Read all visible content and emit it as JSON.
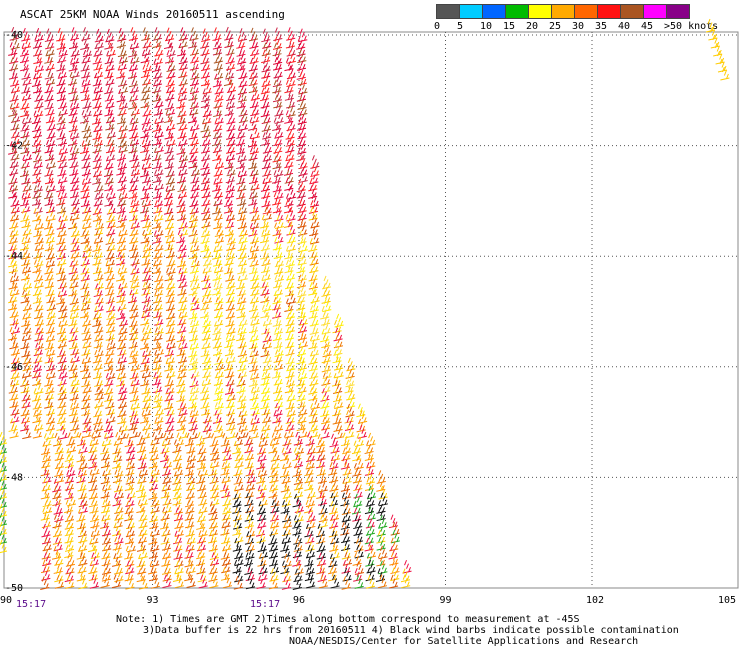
{
  "header": {
    "title": "ASCAT 25KM NOAA Winds 20160511 ascending"
  },
  "legend": {
    "colors": [
      "#555555",
      "#00ccff",
      "#0066ff",
      "#00bb00",
      "#ffff00",
      "#ffaa00",
      "#ff6600",
      "#ff1111",
      "#aa5522",
      "#ff00ff",
      "#880088"
    ],
    "labels": [
      "0",
      "5",
      "10",
      "15",
      "20",
      "25",
      "30",
      "35",
      "40",
      "45",
      ">50 knots"
    ]
  },
  "map": {
    "lon_ticks": [
      "90",
      "93",
      "96",
      "99",
      "102",
      "105"
    ],
    "lat_ticks": [
      "-40",
      "-42",
      "-44",
      "-46",
      "-48",
      "-50"
    ],
    "time_labels": [
      "15:17",
      "15:17"
    ]
  },
  "notes": {
    "line1": "Note: 1) Times are GMT 2)Times along bottom correspond to measurement at -45S",
    "line2": "3)Data buffer is 22 hrs from 20160511 4) Black wind barbs indicate possible contamination",
    "line3": "NOAA/NESDIS/Center for Satellite Applications and Research"
  }
}
